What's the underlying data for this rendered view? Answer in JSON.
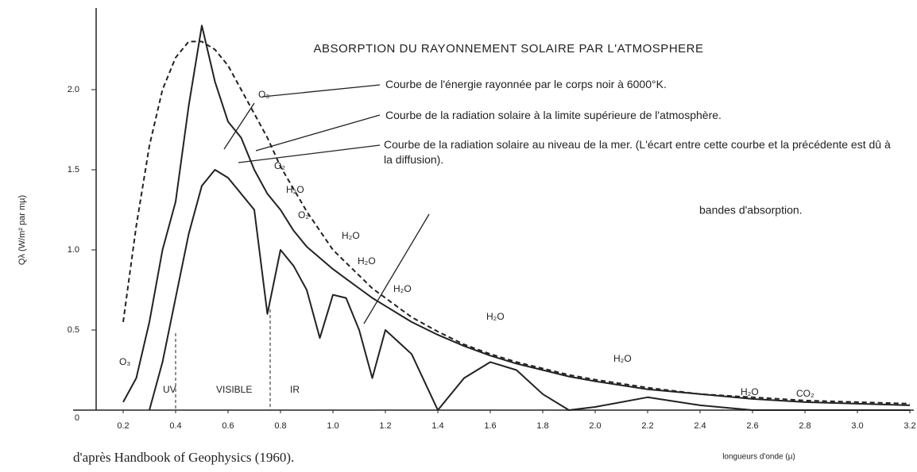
{
  "chart_data": {
    "type": "line",
    "title": "ABSORPTION DU RAYONNEMENT SOLAIRE PAR L'ATMOSPHERE",
    "y_label": "Qλ (W/m² par mµ)",
    "x_label": "longueurs d'onde (µ)",
    "source": "d'après Handbook of Geophysics (1960).",
    "x": [
      0.2,
      0.25,
      0.3,
      0.35,
      0.4,
      0.45,
      0.5,
      0.55,
      0.6,
      0.65,
      0.7,
      0.75,
      0.8,
      0.85,
      0.9,
      0.95,
      1.0,
      1.05,
      1.1,
      1.15,
      1.2,
      1.3,
      1.4,
      1.5,
      1.6,
      1.7,
      1.8,
      1.9,
      2.0,
      2.2,
      2.4,
      2.6,
      2.8,
      3.0,
      3.2
    ],
    "series": [
      {
        "name": "Courbe de l'énergie rayonnée par le corps noir à 6000°K.",
        "color": "#222",
        "dashed": true,
        "values": [
          0.55,
          1.15,
          1.65,
          2.0,
          2.2,
          2.3,
          2.3,
          2.25,
          2.15,
          2.0,
          1.85,
          1.7,
          1.52,
          1.38,
          1.24,
          1.12,
          1.0,
          0.92,
          0.84,
          0.76,
          0.7,
          0.58,
          0.49,
          0.41,
          0.35,
          0.3,
          0.26,
          0.22,
          0.19,
          0.14,
          0.1,
          0.08,
          0.06,
          0.05,
          0.04
        ]
      },
      {
        "name": "Courbe de la radiation solaire à la limite supérieure de l'atmosphère.",
        "color": "#222",
        "dashed": false,
        "values": [
          0.05,
          0.2,
          0.55,
          1.0,
          1.3,
          1.9,
          2.4,
          2.05,
          1.8,
          1.7,
          1.5,
          1.35,
          1.25,
          1.12,
          1.02,
          0.95,
          0.88,
          0.82,
          0.76,
          0.7,
          0.65,
          0.55,
          0.47,
          0.4,
          0.34,
          0.29,
          0.25,
          0.21,
          0.18,
          0.13,
          0.1,
          0.07,
          0.05,
          0.04,
          0.03
        ]
      },
      {
        "name": "Courbe de la radiation solaire au niveau de la mer. (L'écart entre cette courbe et la précédente est dû à la diffusion).",
        "color": "#222",
        "dashed": false,
        "values": [
          null,
          null,
          0,
          0.3,
          0.7,
          1.1,
          1.4,
          1.5,
          1.45,
          1.35,
          1.25,
          0.6,
          1.0,
          0.9,
          0.75,
          0.45,
          0.72,
          0.7,
          0.5,
          0.2,
          0.5,
          0.35,
          0,
          0.2,
          0.3,
          0.25,
          0.1,
          0,
          0.02,
          0.08,
          0.03,
          0,
          0,
          0,
          0
        ]
      }
    ],
    "annotations": [
      "O₃",
      "UV",
      "VISIBLE",
      "IR",
      "O₃",
      "O₂",
      "H₂O",
      "O₂",
      "H₂O",
      "H₂O",
      "H₂O",
      "H₂O",
      "H₂O",
      "H₂O",
      "CO₂",
      "bandes d'absorption."
    ],
    "xlim": [
      0,
      3.2
    ],
    "xticks": [
      0.2,
      0.4,
      0.6,
      0.8,
      {
        "value": 1,
        "label": "1.0"
      },
      1.2,
      1.4,
      1.6,
      1.8,
      {
        "value": 2,
        "label": "2.0"
      },
      2.2,
      2.4,
      2.6,
      2.8,
      {
        "value": 3,
        "label": "3.0"
      },
      3.2
    ],
    "ylim": [
      0,
      2.5
    ],
    "yticks": [
      0,
      0.5,
      {
        "value": 1,
        "label": "1.0"
      },
      1.5,
      {
        "value": 2,
        "label": "2.0"
      }
    ],
    "grid": false
  }
}
